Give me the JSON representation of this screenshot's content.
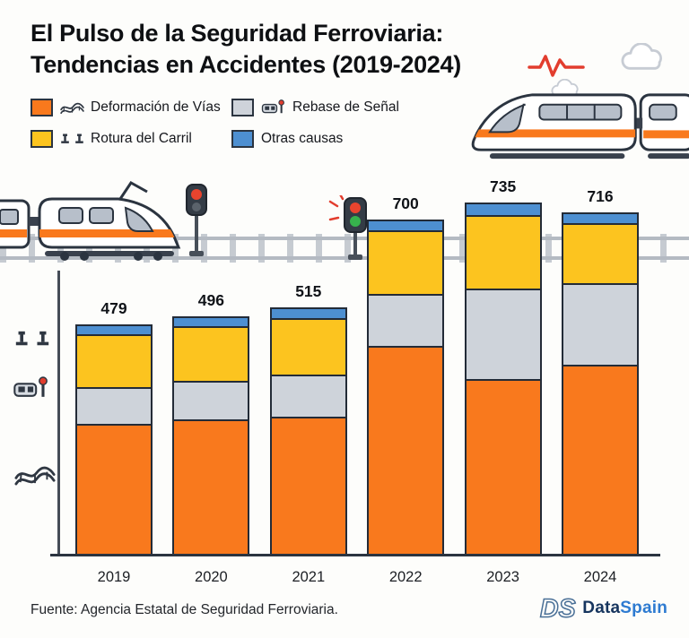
{
  "title": {
    "line1": "El Pulso de la Seguridad Ferroviaria:",
    "line2": "Tendencias en Accidentes (2019-2024)"
  },
  "legend": {
    "items": [
      {
        "label": "Deformación de Vías",
        "swatch": "#f9791d",
        "icon": "bent-track-icon"
      },
      {
        "label": "Rebase de Señal",
        "swatch": "#ced3da",
        "icon": "train-signal-icon"
      },
      {
        "label": "Rotura del Carril",
        "swatch": "#fcc41f",
        "icon": "rail-profile-icon"
      },
      {
        "label": "Otras causas",
        "swatch": "#4d8fd1",
        "icon": ""
      }
    ]
  },
  "chart_data": {
    "type": "bar",
    "stacked": true,
    "title": "Tendencias en Accidentes (2019-2024)",
    "categories": [
      "2019",
      "2020",
      "2021",
      "2022",
      "2023",
      "2024"
    ],
    "totals": [
      479,
      496,
      515,
      700,
      735,
      716
    ],
    "series": [
      {
        "name": "Deformación de Vías",
        "color": "#f9791d",
        "values": [
          270,
          280,
          285,
          434,
          365,
          395
        ]
      },
      {
        "name": "Rebase de Señal",
        "color": "#ced3da",
        "values": [
          78,
          80,
          88,
          109,
          190,
          172
        ]
      },
      {
        "name": "Rotura del Carril",
        "color": "#fcc41f",
        "values": [
          110,
          115,
          120,
          135,
          155,
          125
        ]
      },
      {
        "name": "Otras causas",
        "color": "#4d8fd1",
        "values": [
          21,
          21,
          22,
          22,
          25,
          24
        ]
      }
    ],
    "ylim": [
      0,
      800
    ],
    "grid": false,
    "legend_position": "top-left",
    "xlabel": "",
    "ylabel": ""
  },
  "decor": {
    "icons": {
      "pulse": "pulse-line-icon",
      "cloud": "cloud-icon",
      "train_right": "high-speed-train-icon",
      "train_left": "commuter-train-icon",
      "signal_left": "signal-red-icon",
      "signal_mid": "signal-red-green-icon",
      "track": "railroad-track",
      "axis_icons": [
        "rail-profile-icon",
        "train-signal-icon",
        "bent-track-icon"
      ],
      "logo": "dataspain-monogram"
    },
    "accent_red": "#e23d2e",
    "accent_green": "#37b24d",
    "outline_dark": "#2b3440"
  },
  "footer": {
    "source": "Fuente: Agencia Estatal de Seguridad Ferroviaria."
  },
  "brand": {
    "name_primary": "Data",
    "name_secondary": "Spain"
  }
}
